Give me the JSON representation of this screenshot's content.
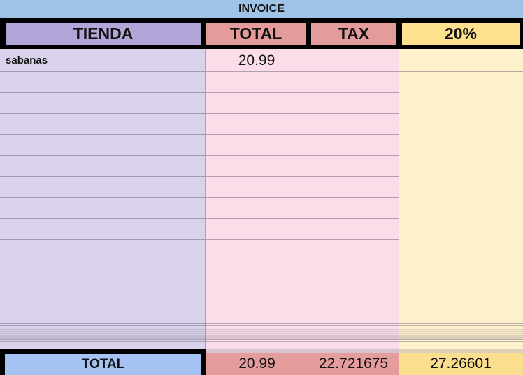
{
  "title": "INVOICE",
  "header": {
    "columns": [
      "TIENDA",
      "TOTAL",
      "TAX",
      "20%"
    ]
  },
  "row_count": 13,
  "rows": [
    {
      "tienda": "sabanas",
      "total": "20.99",
      "tax": "",
      "pct": ""
    }
  ],
  "footer": {
    "label": "TOTAL",
    "total": "20.99",
    "tax": "22.721675",
    "pct": "27.26601"
  },
  "colors": {
    "title_bar": "#9EC3E7",
    "header_tienda": "#B2A5D8",
    "header_salmon": "#E39B9B",
    "header_yellow": "#FEE18D",
    "body_lavender": "#D9D2EA",
    "body_pink": "#FBDCE9",
    "body_cream": "#FEF0CB",
    "footer_blue": "#A5C2F2",
    "footer_salmon": "#E59C9C",
    "footer_yellow": "#FCDF8E",
    "border_black": "#000000"
  }
}
